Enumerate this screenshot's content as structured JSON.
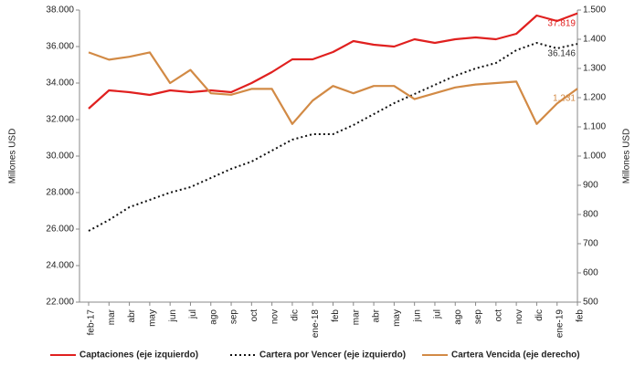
{
  "chart_data": {
    "type": "line",
    "categories": [
      "feb-17",
      "mar",
      "abr",
      "may",
      "jun",
      "jul",
      "ago",
      "sep",
      "oct",
      "nov",
      "dic",
      "ene-18",
      "feb",
      "mar",
      "abr",
      "may",
      "jun",
      "jul",
      "ago",
      "sep",
      "oct",
      "nov",
      "dic",
      "ene-19",
      "feb"
    ],
    "ylabel": "Millones USD",
    "y2label": "Millones USD",
    "ylim": [
      22000,
      38000
    ],
    "yticks": [
      {
        "value": 22000,
        "label": "22.000"
      },
      {
        "value": 24000,
        "label": "24.000"
      },
      {
        "value": 26000,
        "label": "26.000"
      },
      {
        "value": 28000,
        "label": "28.000"
      },
      {
        "value": 30000,
        "label": "30.000"
      },
      {
        "value": 32000,
        "label": "32.000"
      },
      {
        "value": 34000,
        "label": "34.000"
      },
      {
        "value": 36000,
        "label": "36.000"
      },
      {
        "value": 38000,
        "label": "38.000"
      }
    ],
    "y2lim": [
      500,
      1500
    ],
    "y2ticks": [
      500,
      600,
      700,
      800,
      900,
      {
        "value": 1000,
        "label": "1.000"
      },
      {
        "value": 1100,
        "label": "1.100"
      },
      {
        "value": 1200,
        "label": "1.200"
      },
      {
        "value": 1300,
        "label": "1.300"
      },
      {
        "value": 1400,
        "label": "1.400"
      },
      {
        "value": 1500,
        "label": "1.500"
      }
    ],
    "series": [
      {
        "name": "Captaciones (eje izquierdo)",
        "color": "#e0201f",
        "dash": "solid",
        "values": [
          32600,
          33600,
          33500,
          33350,
          33600,
          33500,
          33600,
          33500,
          34000,
          34600,
          35300,
          35300,
          35700,
          36300,
          36100,
          36000,
          36400,
          36200,
          36400,
          36500,
          36400,
          36700,
          37700,
          37400,
          37819
        ],
        "value_labels": [
          null,
          null,
          null,
          null,
          null,
          null,
          null,
          null,
          null,
          null,
          null,
          null,
          null,
          null,
          null,
          null,
          null,
          null,
          null,
          null,
          null,
          null,
          null,
          null,
          "37.819"
        ],
        "label_color": "#e0201f"
      },
      {
        "name": "Cartera por Vencer (eje izquierdo)",
        "color": "#111111",
        "dash": "dotted",
        "values": [
          25900,
          26500,
          27200,
          27600,
          28000,
          28300,
          28800,
          29300,
          29700,
          30300,
          30900,
          31200,
          31200,
          31700,
          32300,
          32900,
          33400,
          33900,
          34400,
          34800,
          35100,
          35800,
          36200,
          35900,
          36146
        ],
        "value_labels": [
          null,
          null,
          null,
          null,
          null,
          null,
          null,
          null,
          null,
          null,
          null,
          null,
          null,
          null,
          null,
          null,
          null,
          null,
          null,
          null,
          null,
          null,
          null,
          null,
          "36.146"
        ],
        "label_color": "#333333"
      },
      {
        "name": "Cartera Vencida (eje derecho)",
        "color": "#d28a45",
        "dash": "solid",
        "axis": "y2",
        "values": [
          1355,
          1330,
          1340,
          1355,
          1250,
          1295,
          1215,
          1210,
          1230,
          1230,
          1110,
          1190,
          1240,
          1215,
          1240,
          1240,
          1195,
          1215,
          1235,
          1245,
          1250,
          1255,
          1110,
          1180,
          1231
        ],
        "value_labels": [
          null,
          null,
          null,
          null,
          null,
          null,
          null,
          null,
          null,
          null,
          null,
          null,
          null,
          null,
          null,
          null,
          null,
          null,
          null,
          null,
          null,
          null,
          null,
          null,
          "1.231"
        ],
        "label_color": "#d28a45"
      }
    ]
  }
}
